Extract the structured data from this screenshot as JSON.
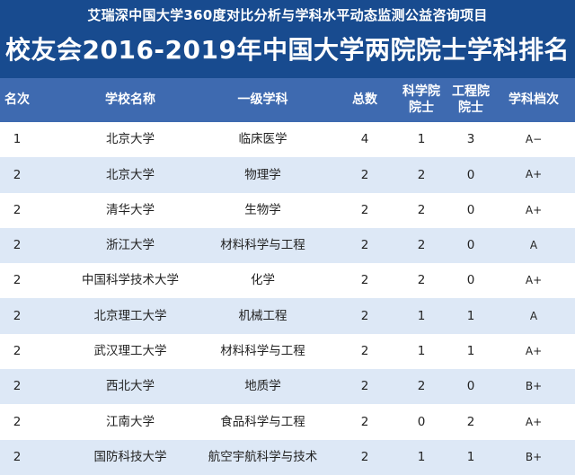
{
  "banner": {
    "subtitle": "艾瑞深中国大学360度对比分析与学科水平动态监测公益咨询项目",
    "title": "校友会2016-2019年中国大学两院院士学科排名"
  },
  "colors": {
    "banner_bg": "#184b8f",
    "header_bg": "#3e6ab0",
    "row_alt_bg": "#dde8f6"
  },
  "table": {
    "headers": {
      "rank": "名次",
      "school": "学校名称",
      "subject": "一级学科",
      "total": "总数",
      "cas": "科学院\n院士",
      "cae": "工程院\n院士",
      "grade": "学科档次"
    },
    "rows": [
      {
        "rank": "1",
        "school": "北京大学",
        "subject": "临床医学",
        "total": "4",
        "cas": "1",
        "cae": "3",
        "grade": "A−"
      },
      {
        "rank": "2",
        "school": "北京大学",
        "subject": "物理学",
        "total": "2",
        "cas": "2",
        "cae": "0",
        "grade": "A+"
      },
      {
        "rank": "2",
        "school": "清华大学",
        "subject": "生物学",
        "total": "2",
        "cas": "2",
        "cae": "0",
        "grade": "A+"
      },
      {
        "rank": "2",
        "school": "浙江大学",
        "subject": "材料科学与工程",
        "total": "2",
        "cas": "2",
        "cae": "0",
        "grade": "A"
      },
      {
        "rank": "2",
        "school": "中国科学技术大学",
        "subject": "化学",
        "total": "2",
        "cas": "2",
        "cae": "0",
        "grade": "A+"
      },
      {
        "rank": "2",
        "school": "北京理工大学",
        "subject": "机械工程",
        "total": "2",
        "cas": "1",
        "cae": "1",
        "grade": "A"
      },
      {
        "rank": "2",
        "school": "武汉理工大学",
        "subject": "材料科学与工程",
        "total": "2",
        "cas": "1",
        "cae": "1",
        "grade": "A+"
      },
      {
        "rank": "2",
        "school": "西北大学",
        "subject": "地质学",
        "total": "2",
        "cas": "2",
        "cae": "0",
        "grade": "B+"
      },
      {
        "rank": "2",
        "school": "江南大学",
        "subject": "食品科学与工程",
        "total": "2",
        "cas": "0",
        "cae": "2",
        "grade": "A+"
      },
      {
        "rank": "2",
        "school": "国防科技大学",
        "subject": "航空宇航科学与技术",
        "total": "2",
        "cas": "1",
        "cae": "1",
        "grade": "B+"
      }
    ]
  }
}
